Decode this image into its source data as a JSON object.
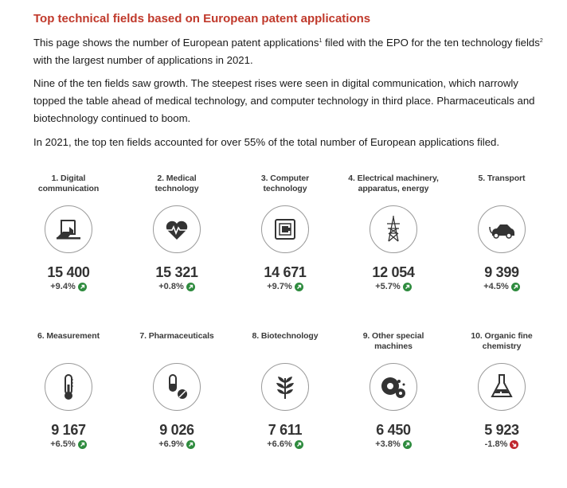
{
  "header": {
    "title": "Top technical fields based on European patent applications",
    "para1_a": "This page shows the number of European patent applications",
    "para1_sup1": "1",
    "para1_b": " filed with the EPO for the ten technology fields",
    "para1_sup2": "2",
    "para1_c": " with the largest number of applications in 2021.",
    "para2": "Nine of the ten fields saw growth. The steepest rises were seen in digital communication, which narrowly topped the table ahead of medical technology, and computer technology in third place. Pharmaceuticals and biotechnology continued to boom.",
    "para3": "In 2021, the top ten fields accounted for over 55% of the total number of European applications filed."
  },
  "colors": {
    "title": "#c0392b",
    "up": "#2e8b3e",
    "down": "#c0262d",
    "icon": "#333333"
  },
  "chart_data": {
    "type": "table",
    "fields": [
      {
        "label": "1. Digital communication",
        "value": "15 400",
        "change": "+9.4%",
        "direction": "up",
        "icon": "laptop-hand-icon"
      },
      {
        "label": "2. Medical technology",
        "value": "15 321",
        "change": "+0.8%",
        "direction": "up",
        "icon": "heartbeat-icon"
      },
      {
        "label": "3. Computer technology",
        "value": "14 671",
        "change": "+9.7%",
        "direction": "up",
        "icon": "chip-icon"
      },
      {
        "label": "4. Electrical machinery, apparatus, energy",
        "value": "12 054",
        "change": "+5.7%",
        "direction": "up",
        "icon": "power-pylon-icon"
      },
      {
        "label": "5. Transport",
        "value": "9 399",
        "change": "+4.5%",
        "direction": "up",
        "icon": "car-icon"
      },
      {
        "label": "6. Measurement",
        "value": "9 167",
        "change": "+6.5%",
        "direction": "up",
        "icon": "thermometer-icon"
      },
      {
        "label": "7. Pharmaceuticals",
        "value": "9 026",
        "change": "+6.9%",
        "direction": "up",
        "icon": "pills-icon"
      },
      {
        "label": "8. Biotechnology",
        "value": "7 611",
        "change": "+6.6%",
        "direction": "up",
        "icon": "plant-icon"
      },
      {
        "label": "9. Other special machines",
        "value": "6 450",
        "change": "+3.8%",
        "direction": "up",
        "icon": "gears-icon"
      },
      {
        "label": "10. Organic fine chemistry",
        "value": "5 923",
        "change": "-1.8%",
        "direction": "down",
        "icon": "flask-icon"
      }
    ],
    "values": [
      15400,
      15321,
      14671,
      12054,
      9399,
      9167,
      9026,
      7611,
      6450,
      5923
    ],
    "change_percent": [
      9.4,
      0.8,
      9.7,
      5.7,
      4.5,
      6.5,
      6.9,
      6.6,
      3.8,
      -1.8
    ]
  }
}
